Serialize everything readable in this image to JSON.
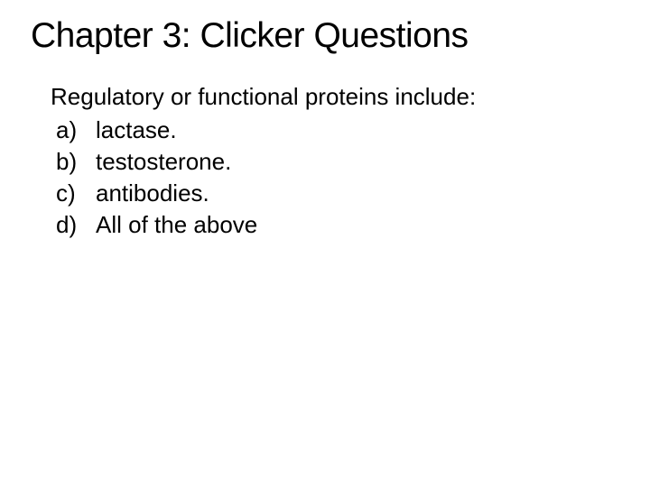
{
  "slide": {
    "title": "Chapter 3: Clicker Questions",
    "question": "Regulatory or functional proteins include:",
    "options": [
      {
        "letter": "a)",
        "text": "lactase."
      },
      {
        "letter": "b)",
        "text": "testosterone."
      },
      {
        "letter": "c)",
        "text": "antibodies."
      },
      {
        "letter": "d)",
        "text": "All of the above"
      }
    ],
    "colors": {
      "background": "#ffffff",
      "text": "#000000"
    },
    "typography": {
      "title_fontsize": 39,
      "body_fontsize": 26,
      "font_family": "Trebuchet MS, Verdana, Arial, sans-serif"
    }
  }
}
